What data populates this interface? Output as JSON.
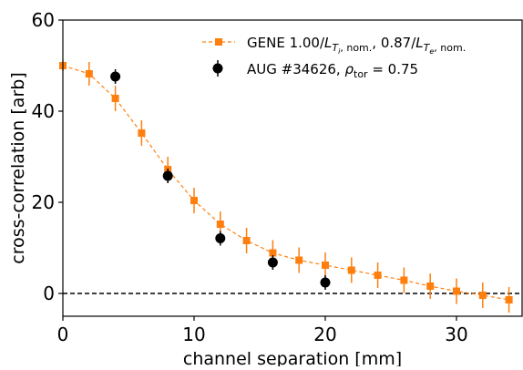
{
  "chart_data": {
    "type": "scatter",
    "xlabel": "channel separation [mm]",
    "ylabel": "cross-correlation [arb]",
    "xlim": [
      0,
      35
    ],
    "ylim": [
      -5,
      60
    ],
    "xticks": [
      0,
      10,
      20,
      30
    ],
    "yticks": [
      0,
      20,
      40,
      60
    ],
    "grid": false,
    "legend_position": "top-right",
    "reference_line": {
      "y": 0,
      "style": "dashed",
      "color": "#000000"
    },
    "series": [
      {
        "name": "GENE 1.00/L_{T_i, nom.}, 0.87/L_{T_e, nom.}",
        "color": "#ff7f0e",
        "marker": "square",
        "line": "dashed",
        "x": [
          0,
          2,
          4,
          6,
          8,
          10,
          12,
          14,
          16,
          18,
          20,
          22,
          24,
          26,
          28,
          30,
          32,
          34
        ],
        "y": [
          50,
          48.2,
          42.8,
          35.2,
          27.2,
          20.4,
          15.2,
          11.6,
          8.9,
          7.3,
          6.2,
          5.1,
          4.0,
          2.9,
          1.6,
          0.5,
          -0.4,
          -1.4
        ],
        "yerr": [
          1.2,
          2.6,
          2.8,
          2.8,
          2.8,
          2.8,
          2.8,
          2.8,
          2.8,
          2.8,
          2.8,
          2.8,
          2.8,
          2.8,
          2.8,
          2.8,
          2.8,
          2.8
        ]
      },
      {
        "name": "AUG #34626, ρ_tor = 0.75",
        "color": "#000000",
        "marker": "circle",
        "line": "none",
        "x": [
          4,
          8,
          12,
          16,
          20
        ],
        "y": [
          47.6,
          25.8,
          12.1,
          6.8,
          2.4
        ],
        "yerr": [
          1.6,
          1.6,
          1.6,
          1.6,
          1.6
        ]
      }
    ]
  }
}
